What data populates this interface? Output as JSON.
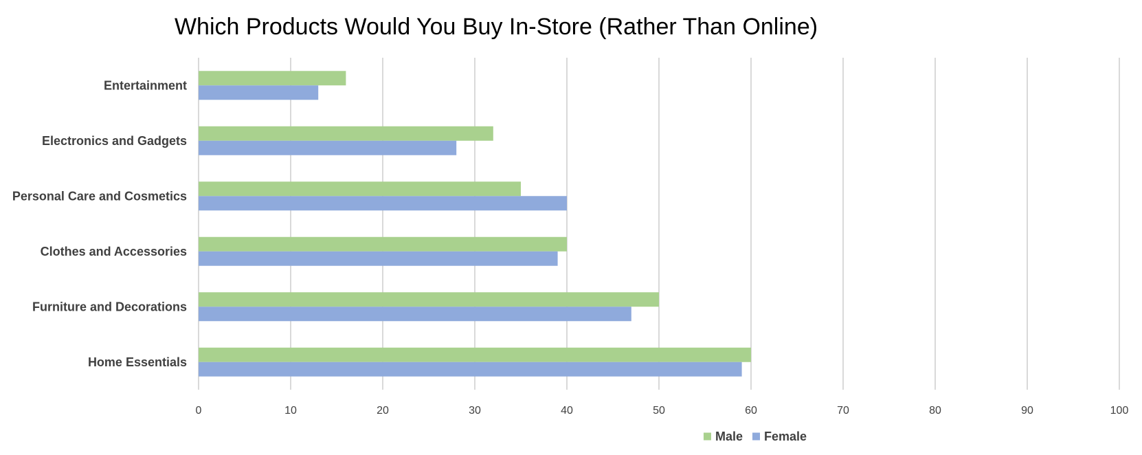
{
  "chart_data": {
    "type": "bar",
    "orientation": "horizontal",
    "title": "Which Products Would You Buy In-Store (Rather Than Online)",
    "xlabel": "",
    "ylabel": "",
    "categories": [
      "Entertainment",
      "Electronics and Gadgets",
      "Personal Care and Cosmetics",
      "Clothes and Accessories",
      "Furniture and Decorations",
      "Home Essentials"
    ],
    "series": [
      {
        "name": "Male",
        "color": "#a9d18e",
        "values": [
          16,
          32,
          35,
          40,
          50,
          60
        ]
      },
      {
        "name": "Female",
        "color": "#8faadc",
        "values": [
          13,
          28,
          40,
          39,
          47,
          59
        ]
      }
    ],
    "xlim": [
      0,
      100
    ],
    "xticks": [
      0,
      10,
      20,
      30,
      40,
      50,
      60,
      70,
      80,
      90,
      100
    ],
    "grid": "vertical",
    "legend": "bottom-center",
    "gridline_color": "#d9d9d9",
    "text_color": "#404040"
  }
}
